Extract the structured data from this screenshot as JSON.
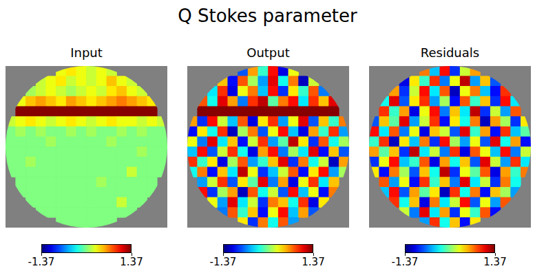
{
  "chart_data": {
    "type": "heatmap",
    "title": "Q Stokes parameter",
    "color": "jet",
    "tick_labels": false,
    "colorbar": {
      "range": [
        -1.37,
        1.37
      ],
      "ticks": [
        -1.37,
        1.37
      ]
    },
    "panels": [
      {
        "title": "Input",
        "cells": [
          [
            null,
            null,
            null,
            null,
            null,
            0.3,
            0.4,
            0.3,
            0.2,
            0.3,
            0.2,
            null,
            null,
            null,
            null,
            null
          ],
          [
            null,
            null,
            null,
            0.2,
            0.3,
            0.4,
            0.2,
            0.3,
            0.2,
            0.3,
            0.5,
            0.3,
            0.2,
            null,
            null,
            null
          ],
          [
            null,
            null,
            0.1,
            0.2,
            0.3,
            0.2,
            0.1,
            0.2,
            0.3,
            0.2,
            0.4,
            0.5,
            0.3,
            0.2,
            null,
            null
          ],
          [
            null,
            0.3,
            0.5,
            0.6,
            0.5,
            0.4,
            0.6,
            0.5,
            0.4,
            0.5,
            0.6,
            0.7,
            0.6,
            0.5,
            0.4,
            null
          ],
          [
            null,
            1.35,
            1.35,
            1.35,
            1.35,
            1.35,
            1.35,
            1.35,
            1.35,
            1.35,
            1.35,
            1.35,
            1.35,
            1.35,
            1.35,
            null
          ],
          [
            0.2,
            0.3,
            0.4,
            0.3,
            0.2,
            0.3,
            0.4,
            0.3,
            0.2,
            0.3,
            0.4,
            0.3,
            0.3,
            0.2,
            0.3,
            0.2
          ],
          [
            0,
            0.1,
            0,
            0.1,
            0,
            0,
            0.1,
            0,
            0.1,
            0,
            0,
            0.1,
            0,
            0.1,
            0,
            0
          ],
          [
            0,
            0,
            0,
            0,
            0.1,
            0,
            0,
            0,
            0,
            0,
            0.1,
            0,
            0,
            0,
            0,
            0
          ],
          [
            0,
            0,
            0,
            0,
            0,
            0,
            0,
            0,
            0,
            0,
            0,
            0,
            0,
            0.1,
            0,
            0
          ],
          [
            0,
            0,
            0.1,
            0,
            0,
            0,
            0,
            0,
            0,
            0,
            0,
            0,
            0,
            0,
            0,
            0
          ],
          [
            0,
            0,
            0,
            0,
            0,
            0,
            0,
            0,
            0,
            0,
            0,
            0,
            0.2,
            0,
            0,
            0
          ],
          [
            null,
            0,
            0,
            0,
            0,
            0,
            0,
            0,
            0,
            0.1,
            0,
            0,
            0,
            0,
            0,
            null
          ],
          [
            null,
            0,
            0,
            0,
            0,
            0,
            0,
            0,
            0,
            0,
            0,
            0,
            0,
            0,
            0,
            null
          ],
          [
            null,
            null,
            0,
            0,
            0,
            0,
            0,
            0,
            0,
            0,
            0,
            0.2,
            0,
            0,
            null,
            null
          ],
          [
            null,
            null,
            null,
            0,
            0,
            0,
            0,
            0,
            0,
            0,
            0,
            0,
            0,
            null,
            null,
            null
          ],
          [
            null,
            null,
            null,
            null,
            null,
            0,
            0,
            0,
            0,
            0,
            0,
            null,
            null,
            null,
            null,
            null
          ]
        ]
      },
      {
        "title": "Output",
        "cells": [
          [
            null,
            null,
            null,
            null,
            null,
            -0.8,
            0.6,
            -0.2,
            1.0,
            -1.1,
            0.3,
            null,
            null,
            null,
            null,
            null
          ],
          [
            null,
            null,
            null,
            0.5,
            -1.0,
            0.8,
            0.1,
            -0.6,
            1.1,
            -0.3,
            0.7,
            -1.2,
            0.2,
            null,
            null,
            null
          ],
          [
            null,
            null,
            -0.4,
            0.9,
            -1.1,
            0.3,
            0.7,
            -0.5,
            1.0,
            -0.9,
            0.4,
            -0.2,
            0.8,
            -0.7,
            null,
            null
          ],
          [
            null,
            0.8,
            -0.3,
            1.1,
            0.6,
            -0.7,
            0.9,
            1.2,
            -0.1,
            0.7,
            1.0,
            -0.4,
            0.9,
            0.5,
            1.1,
            null
          ],
          [
            null,
            1.35,
            1.35,
            1.35,
            1.35,
            1.35,
            1.35,
            1.35,
            1.35,
            1.35,
            1.35,
            1.35,
            1.35,
            1.35,
            1.35,
            null
          ],
          [
            0.6,
            -0.9,
            1.0,
            0.2,
            -0.5,
            0.8,
            -1.1,
            0.4,
            0.9,
            -0.6,
            0.3,
            1.1,
            -0.8,
            0.5,
            -0.2,
            0.7
          ],
          [
            -1.0,
            0.4,
            -0.3,
            0.9,
            -1.2,
            0.1,
            0.7,
            -0.8,
            0.3,
            1.0,
            -0.5,
            -1.1,
            0.6,
            -0.2,
            0.9,
            -0.6
          ],
          [
            0.3,
            -0.7,
            1.1,
            -0.4,
            0.5,
            -1.0,
            0.2,
            0.9,
            -0.6,
            -0.1,
            1.2,
            0.4,
            -0.9,
            0.8,
            -0.3,
            0.1
          ],
          [
            -0.5,
            1.0,
            -0.8,
            0.2,
            0.9,
            -0.3,
            -1.1,
            0.6,
            1.0,
            -0.7,
            0.1,
            -0.4,
            1.1,
            -1.0,
            0.5,
            -0.8
          ],
          [
            0.9,
            -0.2,
            0.4,
            -1.1,
            0.1,
            0.8,
            -0.6,
            -0.2,
            0.5,
            1.1,
            -0.9,
            0.7,
            -0.3,
            0.2,
            -1.2,
            0.6
          ],
          [
            -0.3,
            0.7,
            -1.0,
            0.5,
            -0.4,
            1.2,
            0.3,
            -0.9,
            -0.5,
            0.2,
            0.8,
            -1.0,
            0.4,
            1.0,
            -0.6,
            0.1
          ],
          [
            null,
            -0.6,
            0.2,
            0.9,
            -0.8,
            0.4,
            -0.1,
            1.1,
            -0.7,
            0.6,
            -1.1,
            0.3,
            0.9,
            -0.4,
            0.5,
            null
          ],
          [
            null,
            1.0,
            -0.9,
            0.1,
            0.6,
            -1.2,
            0.8,
            -0.3,
            0.2,
            -0.8,
            1.0,
            -0.5,
            0.3,
            -1.0,
            0.7,
            null
          ],
          [
            null,
            null,
            0.3,
            -0.6,
            1.1,
            -0.4,
            0.2,
            -0.9,
            0.7,
            0.5,
            -0.3,
            0.9,
            -1.1,
            0.4,
            null,
            null
          ],
          [
            null,
            null,
            null,
            -0.7,
            0.8,
            -0.2,
            0.5,
            -1.0,
            0.3,
            1.0,
            -0.5,
            0.6,
            -0.8,
            null,
            null,
            null
          ],
          [
            null,
            null,
            null,
            null,
            null,
            0.4,
            -0.9,
            0.7,
            -0.3,
            0.8,
            -0.6,
            null,
            null,
            null,
            null,
            null
          ]
        ]
      },
      {
        "title": "Residuals",
        "cells": [
          [
            null,
            null,
            null,
            null,
            null,
            0.7,
            -0.5,
            1.0,
            -0.9,
            0.2,
            0.6,
            null,
            null,
            null,
            null,
            null
          ],
          [
            null,
            null,
            null,
            -1.1,
            0.4,
            -0.2,
            0.9,
            -0.7,
            0.3,
            1.2,
            -0.6,
            0.5,
            -0.8,
            null,
            null,
            null
          ],
          [
            null,
            null,
            0.6,
            -0.9,
            0.2,
            1.0,
            -0.4,
            0.8,
            -1.2,
            0.3,
            0.7,
            -0.5,
            -1.0,
            0.9,
            null,
            null
          ],
          [
            null,
            -0.3,
            1.1,
            -0.8,
            0.4,
            0.9,
            -0.6,
            0.1,
            -1.0,
            0.8,
            -0.2,
            0.5,
            -0.9,
            1.0,
            -0.4,
            null
          ],
          [
            null,
            0.9,
            -0.2,
            0.6,
            -1.1,
            0.3,
            1.0,
            -0.7,
            0.5,
            -0.4,
            1.2,
            -0.9,
            0.2,
            -0.6,
            0.8,
            null
          ],
          [
            -0.8,
            0.5,
            -0.1,
            1.1,
            -0.6,
            0.2,
            0.9,
            -1.0,
            0.4,
            -0.3,
            0.7,
            -1.2,
            0.6,
            0.1,
            -0.9,
            0.4
          ],
          [
            1.0,
            -0.4,
            0.8,
            -0.7,
            0.3,
            -1.1,
            0.5,
            0.2,
            -0.8,
            1.1,
            -0.2,
            0.6,
            -1.0,
            0.9,
            -0.5,
            -0.1
          ],
          [
            -0.2,
            0.9,
            -1.2,
            0.4,
            -0.5,
            0.7,
            -0.9,
            1.0,
            0.1,
            -0.6,
            0.3,
            -0.8,
            1.1,
            -0.3,
            0.6,
            -1.0
          ],
          [
            0.6,
            -0.1,
            0.5,
            -0.9,
            1.2,
            -0.4,
            0.2,
            -0.7,
            0.9,
            -1.1,
            0.8,
            0.3,
            -0.5,
            1.0,
            -0.7,
            0.2
          ],
          [
            -0.9,
            0.3,
            1.0,
            -0.5,
            -0.2,
            0.8,
            -1.1,
            0.6,
            -0.3,
            0.5,
            -0.8,
            1.1,
            0.2,
            -0.6,
            0.9,
            -0.4
          ],
          [
            0.4,
            -1.0,
            0.7,
            0.1,
            -0.8,
            0.5,
            -0.3,
            1.2,
            -0.9,
            0.3,
            -0.1,
            0.8,
            -1.1,
            0.6,
            -0.2,
            0.7
          ],
          [
            null,
            0.8,
            -0.6,
            0.3,
            -1.0,
            0.9,
            -0.2,
            0.5,
            -0.7,
            1.1,
            -0.4,
            0.2,
            -0.9,
            0.7,
            -0.3,
            null
          ],
          [
            null,
            -0.5,
            1.0,
            -0.8,
            0.6,
            -0.1,
            0.4,
            -1.2,
            0.9,
            -0.3,
            0.7,
            -1.0,
            0.5,
            0.1,
            -0.6,
            null
          ],
          [
            null,
            null,
            0.9,
            -0.3,
            0.5,
            -1.1,
            0.7,
            -0.4,
            0.2,
            1.0,
            -0.8,
            0.3,
            -0.6,
            0.8,
            null,
            null
          ],
          [
            null,
            null,
            null,
            0.2,
            -0.7,
            1.1,
            -0.4,
            0.6,
            -0.9,
            0.3,
            -0.2,
            0.8,
            -1.0,
            null,
            null,
            null
          ],
          [
            null,
            null,
            null,
            null,
            null,
            -0.6,
            0.9,
            -0.3,
            0.5,
            -1.0,
            0.4,
            null,
            null,
            null,
            null,
            null
          ]
        ]
      }
    ]
  }
}
